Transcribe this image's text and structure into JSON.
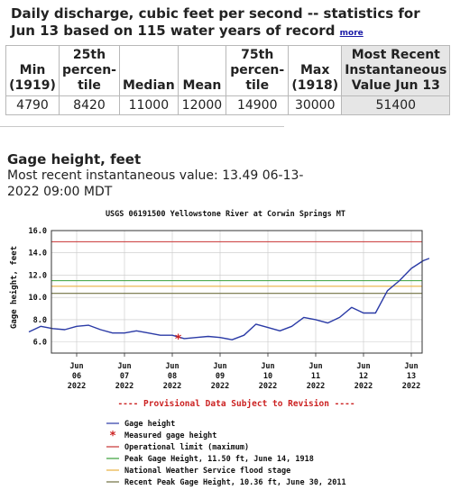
{
  "stats": {
    "title": "Daily discharge, cubic feet per second -- statistics for Jun 13 based on 115 water years of record",
    "more_link": "more",
    "headers": [
      "Min (1919)",
      "25th percen-tile",
      "Median",
      "Mean",
      "75th percen-tile",
      "Max (1918)",
      "Most Recent Instantaneous Value Jun 13"
    ],
    "values": [
      "4790",
      "8420",
      "11000",
      "12000",
      "14900",
      "30000",
      "51400"
    ]
  },
  "gage": {
    "title": "Gage height, feet",
    "subtitle": "Most recent instantaneous value: 13.49 06-13-2022 09:00 MDT"
  },
  "chart_data": {
    "type": "line",
    "title": "USGS 06191500 Yellowstone River at Corwin Springs MT",
    "ylabel": "Gage height, feet",
    "ylim": [
      5.0,
      16.0
    ],
    "yticks": [
      "6.0",
      "8.0",
      "10.0",
      "12.0",
      "14.0",
      "16.0"
    ],
    "xlim": [
      "2022-06-05",
      "2022-06-13"
    ],
    "xticks": [
      {
        "date": "2022-06-06",
        "label": [
          "Jun",
          "06",
          "2022"
        ]
      },
      {
        "date": "2022-06-07",
        "label": [
          "Jun",
          "07",
          "2022"
        ]
      },
      {
        "date": "2022-06-08",
        "label": [
          "Jun",
          "08",
          "2022"
        ]
      },
      {
        "date": "2022-06-09",
        "label": [
          "Jun",
          "09",
          "2022"
        ]
      },
      {
        "date": "2022-06-10",
        "label": [
          "Jun",
          "10",
          "2022"
        ]
      },
      {
        "date": "2022-06-11",
        "label": [
          "Jun",
          "11",
          "2022"
        ]
      },
      {
        "date": "2022-06-12",
        "label": [
          "Jun",
          "12",
          "2022"
        ]
      },
      {
        "date": "2022-06-13",
        "label": [
          "Jun",
          "13",
          "2022"
        ]
      }
    ],
    "series": [
      {
        "name": "Gage height",
        "color": "#2a3aa6",
        "points": [
          [
            "2022-06-05 00:00",
            6.9
          ],
          [
            "2022-06-05 06:00",
            7.4
          ],
          [
            "2022-06-05 12:00",
            7.2
          ],
          [
            "2022-06-05 18:00",
            7.1
          ],
          [
            "2022-06-06 00:00",
            7.4
          ],
          [
            "2022-06-06 06:00",
            7.5
          ],
          [
            "2022-06-06 12:00",
            7.1
          ],
          [
            "2022-06-06 18:00",
            6.8
          ],
          [
            "2022-06-07 00:00",
            6.8
          ],
          [
            "2022-06-07 06:00",
            7.0
          ],
          [
            "2022-06-07 12:00",
            6.8
          ],
          [
            "2022-06-07 18:00",
            6.6
          ],
          [
            "2022-06-08 00:00",
            6.6
          ],
          [
            "2022-06-08 06:00",
            6.3
          ],
          [
            "2022-06-08 12:00",
            6.4
          ],
          [
            "2022-06-08 18:00",
            6.5
          ],
          [
            "2022-06-09 00:00",
            6.4
          ],
          [
            "2022-06-09 06:00",
            6.2
          ],
          [
            "2022-06-09 12:00",
            6.6
          ],
          [
            "2022-06-09 18:00",
            7.6
          ],
          [
            "2022-06-10 00:00",
            7.3
          ],
          [
            "2022-06-10 06:00",
            7.0
          ],
          [
            "2022-06-10 12:00",
            7.4
          ],
          [
            "2022-06-10 18:00",
            8.2
          ],
          [
            "2022-06-11 00:00",
            8.0
          ],
          [
            "2022-06-11 06:00",
            7.7
          ],
          [
            "2022-06-11 12:00",
            8.2
          ],
          [
            "2022-06-11 18:00",
            9.1
          ],
          [
            "2022-06-12 00:00",
            8.6
          ],
          [
            "2022-06-12 06:00",
            8.6
          ],
          [
            "2022-06-12 12:00",
            10.6
          ],
          [
            "2022-06-12 18:00",
            11.5
          ],
          [
            "2022-06-13 00:00",
            12.6
          ],
          [
            "2022-06-13 06:00",
            13.3
          ],
          [
            "2022-06-13 09:00",
            13.5
          ]
        ]
      },
      {
        "name": "Measured gage height",
        "color": "#cc2222",
        "marker": "asterisk",
        "points": [
          [
            "2022-06-08 03:00",
            6.3
          ]
        ]
      }
    ],
    "reference_lines": [
      {
        "name": "Operational limit (maximum)",
        "value": 15.0,
        "color": "#c83232"
      },
      {
        "name": "Peak Gage Height, 11.50 ft, June 14, 1918",
        "value": 11.5,
        "color": "#3aa03a"
      },
      {
        "name": "National Weather Service flood stage",
        "value": 11.0,
        "color": "#e8b040"
      },
      {
        "name": "Recent Peak Gage Height, 10.36 ft, June 30, 2011",
        "value": 10.36,
        "color": "#707040"
      }
    ],
    "provisional_note": "---- Provisional Data Subject to Revision ----",
    "grid": true
  }
}
